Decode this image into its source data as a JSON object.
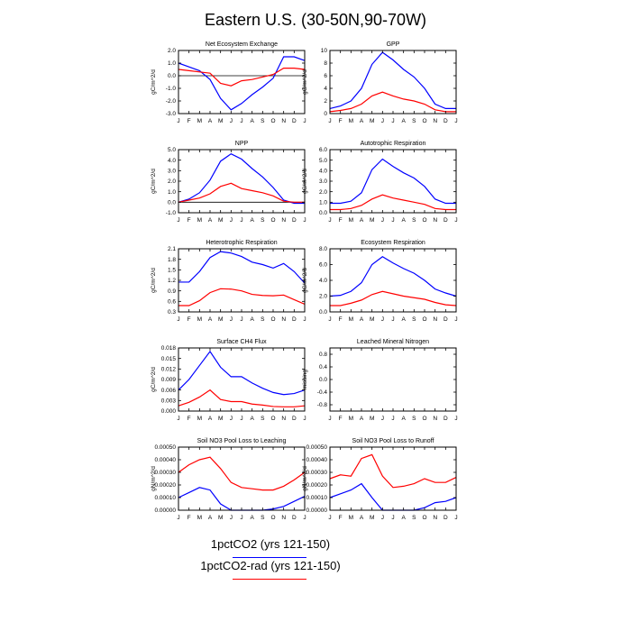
{
  "figure": {
    "title": "Eastern U.S. (30-50N,90-70W)"
  },
  "months": [
    "J",
    "F",
    "M",
    "A",
    "M",
    "J",
    "J",
    "A",
    "S",
    "O",
    "N",
    "D",
    "J"
  ],
  "legend": {
    "items": [
      {
        "label": "1pctCO2 (yrs 121-150)",
        "color": "#0000ff"
      },
      {
        "label": "1pctCO2-rad (yrs 121-150)",
        "color": "#ff0000"
      }
    ]
  },
  "chart_data": [
    {
      "type": "line",
      "title": "Net Ecosystem Exchange",
      "ylabel": "gC/m^2/d",
      "ylim": [
        -3.0,
        2.0
      ],
      "yticks": [
        "2.0",
        "1.0",
        "0.0",
        "-1.0",
        "-2.0",
        "-3.0"
      ],
      "ytick_values": [
        2.0,
        1.0,
        0.0,
        -1.0,
        -2.0,
        -3.0
      ],
      "zero_line": true,
      "series": [
        {
          "values": [
            1.0,
            0.7,
            0.4,
            -0.3,
            -1.8,
            -2.7,
            -2.2,
            -1.5,
            -0.9,
            -0.2,
            1.5,
            1.5,
            1.2
          ],
          "color": "#0000ff"
        },
        {
          "values": [
            0.5,
            0.4,
            0.3,
            0.2,
            -0.6,
            -0.8,
            -0.4,
            -0.3,
            -0.1,
            0.1,
            0.6,
            0.6,
            0.5
          ],
          "color": "#ff0000"
        }
      ]
    },
    {
      "type": "line",
      "title": "GPP",
      "ylabel": "gC/m^2/d",
      "ylim": [
        0,
        10
      ],
      "yticks": [
        "10",
        "8",
        "6",
        "4",
        "2",
        "0"
      ],
      "ytick_values": [
        10,
        8,
        6,
        4,
        2,
        0
      ],
      "zero_line": false,
      "series": [
        {
          "values": [
            0.8,
            1.2,
            2.0,
            4.0,
            7.8,
            9.7,
            8.5,
            7.0,
            5.8,
            4.0,
            1.5,
            0.8,
            0.8
          ],
          "color": "#0000ff"
        },
        {
          "values": [
            0.3,
            0.5,
            0.8,
            1.5,
            2.8,
            3.4,
            2.8,
            2.3,
            2.0,
            1.5,
            0.6,
            0.3,
            0.3
          ],
          "color": "#ff0000"
        }
      ]
    },
    {
      "type": "line",
      "title": "NPP",
      "ylabel": "gC/m^2/d",
      "ylim": [
        -1.0,
        5.0
      ],
      "yticks": [
        "5.0",
        "4.0",
        "3.0",
        "2.0",
        "1.0",
        "0.0",
        "-1.0"
      ],
      "ytick_values": [
        5.0,
        4.0,
        3.0,
        2.0,
        1.0,
        0.0,
        -1.0
      ],
      "zero_line": true,
      "series": [
        {
          "values": [
            0.0,
            0.3,
            0.9,
            2.1,
            3.9,
            4.6,
            4.1,
            3.2,
            2.4,
            1.4,
            0.2,
            -0.1,
            -0.1
          ],
          "color": "#0000ff"
        },
        {
          "values": [
            0.0,
            0.2,
            0.4,
            0.8,
            1.5,
            1.8,
            1.3,
            1.1,
            0.9,
            0.6,
            0.1,
            0.0,
            0.0
          ],
          "color": "#ff0000"
        }
      ]
    },
    {
      "type": "line",
      "title": "Autotrophic Respiration",
      "ylabel": "gC/m^2/d",
      "ylim": [
        0,
        6.0
      ],
      "yticks": [
        "6.0",
        "5.0",
        "4.0",
        "3.0",
        "2.0",
        "1.0",
        "0.0"
      ],
      "ytick_values": [
        6.0,
        5.0,
        4.0,
        3.0,
        2.0,
        1.0,
        0.0
      ],
      "zero_line": false,
      "series": [
        {
          "values": [
            0.9,
            0.9,
            1.1,
            1.9,
            4.1,
            5.1,
            4.4,
            3.8,
            3.3,
            2.5,
            1.3,
            0.9,
            0.9
          ],
          "color": "#0000ff"
        },
        {
          "values": [
            0.3,
            0.3,
            0.4,
            0.7,
            1.3,
            1.7,
            1.4,
            1.2,
            1.0,
            0.8,
            0.4,
            0.3,
            0.3
          ],
          "color": "#ff0000"
        }
      ]
    },
    {
      "type": "line",
      "title": "Heterotrophic Respiration",
      "ylabel": "gC/m^2/d",
      "ylim": [
        0.3,
        2.1
      ],
      "yticks": [
        "2.1",
        "1.8",
        "1.5",
        "1.2",
        "0.9",
        "0.6",
        "0.3"
      ],
      "ytick_values": [
        2.1,
        1.8,
        1.5,
        1.2,
        0.9,
        0.6,
        0.3
      ],
      "zero_line": false,
      "series": [
        {
          "values": [
            1.15,
            1.15,
            1.45,
            1.85,
            2.02,
            1.98,
            1.88,
            1.72,
            1.65,
            1.55,
            1.68,
            1.45,
            1.12
          ],
          "color": "#0000ff"
        },
        {
          "values": [
            0.48,
            0.48,
            0.62,
            0.85,
            0.96,
            0.95,
            0.9,
            0.8,
            0.77,
            0.76,
            0.78,
            0.65,
            0.52
          ],
          "color": "#ff0000"
        }
      ]
    },
    {
      "type": "line",
      "title": "Ecosystem Respiration",
      "ylabel": "gC/m^2/d",
      "ylim": [
        0,
        8.0
      ],
      "yticks": [
        "8.0",
        "6.0",
        "4.0",
        "2.0",
        "0.0"
      ],
      "ytick_values": [
        8.0,
        6.0,
        4.0,
        2.0,
        0.0
      ],
      "zero_line": false,
      "series": [
        {
          "values": [
            2.0,
            2.1,
            2.6,
            3.7,
            6.0,
            7.0,
            6.2,
            5.5,
            4.9,
            4.0,
            2.9,
            2.4,
            2.0
          ],
          "color": "#0000ff"
        },
        {
          "values": [
            0.8,
            0.8,
            1.1,
            1.5,
            2.2,
            2.6,
            2.3,
            2.0,
            1.8,
            1.6,
            1.2,
            0.9,
            0.8
          ],
          "color": "#ff0000"
        }
      ]
    },
    {
      "type": "line",
      "title": "Surface CH4 Flux",
      "ylabel": "gC/m^2/d",
      "ylim": [
        0,
        0.018
      ],
      "yticks": [
        "0.018",
        "0.015",
        "0.012",
        "0.009",
        "0.006",
        "0.003",
        "0.000"
      ],
      "ytick_values": [
        0.018,
        0.015,
        0.012,
        0.009,
        0.006,
        0.003,
        0.0
      ],
      "zero_line": false,
      "series": [
        {
          "values": [
            0.006,
            0.009,
            0.013,
            0.017,
            0.0125,
            0.0098,
            0.0098,
            0.008,
            0.0065,
            0.0053,
            0.0047,
            0.005,
            0.006
          ],
          "color": "#0000ff"
        },
        {
          "values": [
            0.0015,
            0.0025,
            0.004,
            0.006,
            0.0033,
            0.0027,
            0.0027,
            0.002,
            0.0017,
            0.0013,
            0.0012,
            0.0012,
            0.0015
          ],
          "color": "#ff0000"
        }
      ]
    },
    {
      "type": "line",
      "title": "Leached Mineral Nitrogen",
      "ylabel": "missing",
      "ylim": [
        -1.0,
        1.0
      ],
      "yticks": [
        "0.8",
        "0.4",
        "0.0",
        "-0.4",
        "-0.8"
      ],
      "ytick_values": [
        0.8,
        0.4,
        0.0,
        -0.4,
        -0.8
      ],
      "zero_line": false,
      "series": []
    },
    {
      "type": "line",
      "title": "Soil NO3 Pool Loss to Leaching",
      "ylabel": "gN/m^2/d",
      "ylim": [
        0,
        0.0005
      ],
      "yticks": [
        "0.00050",
        "0.00040",
        "0.00030",
        "0.00020",
        "0.00010",
        "0.00000"
      ],
      "ytick_values": [
        0.0005,
        0.0004,
        0.0003,
        0.0002,
        0.0001,
        0.0
      ],
      "zero_line": false,
      "series": [
        {
          "values": [
            0.0001,
            0.00014,
            0.00018,
            0.00016,
            5e-05,
            0.0,
            0.0,
            0.0,
            0.0,
            1e-05,
            3e-05,
            7e-05,
            0.00011
          ],
          "color": "#0000ff"
        },
        {
          "values": [
            0.0003,
            0.00036,
            0.0004,
            0.00042,
            0.00033,
            0.00022,
            0.00018,
            0.00017,
            0.00016,
            0.00016,
            0.00019,
            0.00024,
            0.0003
          ],
          "color": "#ff0000"
        }
      ]
    },
    {
      "type": "line",
      "title": "Soil NO3 Pool Loss to Runoff",
      "ylabel": "gN/m^2/d",
      "ylim": [
        0,
        0.0005
      ],
      "yticks": [
        "0.00050",
        "0.00040",
        "0.00030",
        "0.00020",
        "0.00010",
        "0.00000"
      ],
      "ytick_values": [
        0.0005,
        0.0004,
        0.0003,
        0.0002,
        0.0001,
        0.0
      ],
      "zero_line": false,
      "series": [
        {
          "values": [
            0.0001,
            0.00013,
            0.00016,
            0.00021,
            0.0001,
            0.0,
            0.0,
            0.0,
            0.0,
            2e-05,
            6e-05,
            7e-05,
            0.0001
          ],
          "color": "#0000ff"
        },
        {
          "values": [
            0.00025,
            0.00028,
            0.00027,
            0.00041,
            0.00044,
            0.00027,
            0.00018,
            0.00019,
            0.00021,
            0.00025,
            0.00022,
            0.00022,
            0.00026
          ],
          "color": "#ff0000"
        }
      ]
    }
  ]
}
